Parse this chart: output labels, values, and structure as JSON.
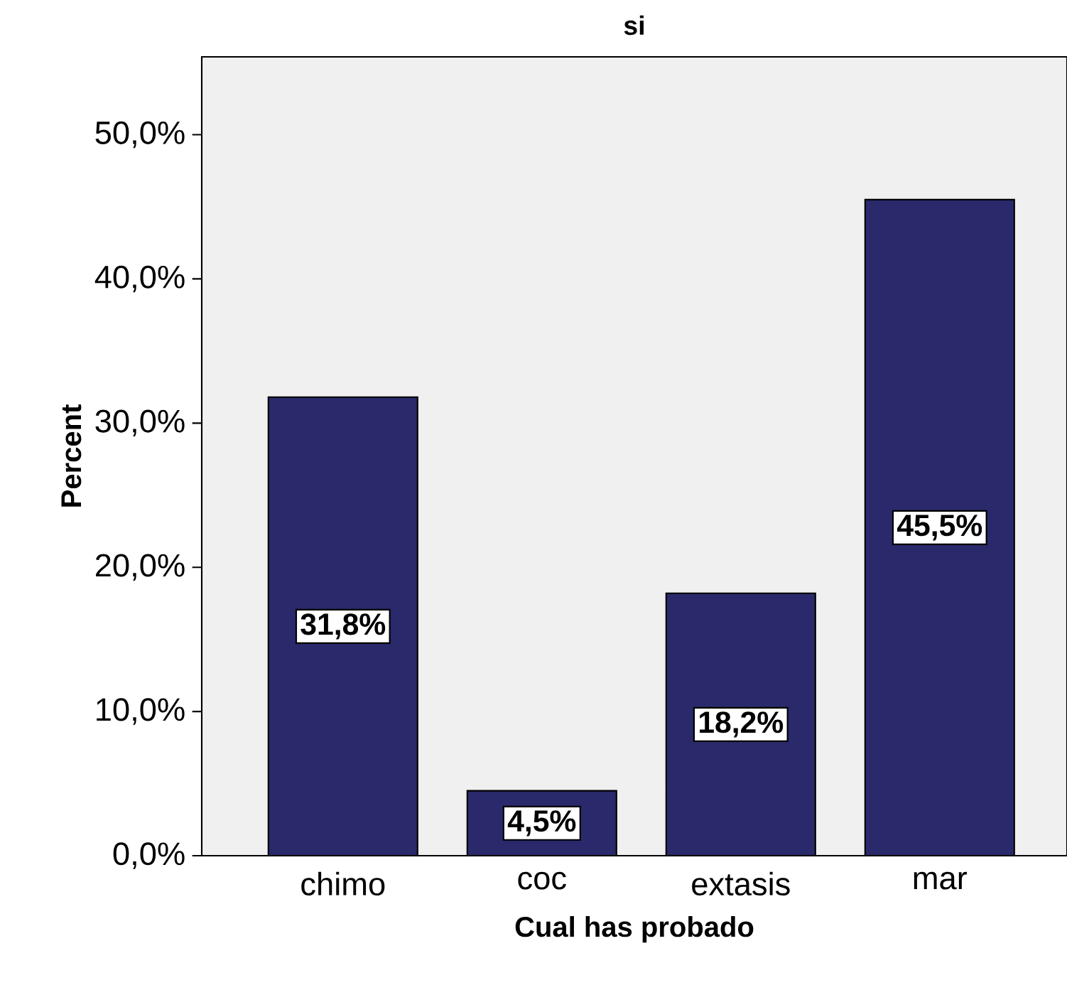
{
  "chart_data": {
    "type": "bar",
    "title": "si",
    "xlabel": "Cual has probado",
    "ylabel": "Percent",
    "categories": [
      "chimo",
      "coc",
      "extasis",
      "mar"
    ],
    "values": [
      31.8,
      4.5,
      18.2,
      45.5
    ],
    "value_labels": [
      "31,8%",
      "4,5%",
      "18,2%",
      "45,5%"
    ],
    "color": "#29296b",
    "ylim": [
      0,
      55.4
    ],
    "yticks": [
      {
        "value": 0,
        "label": "0,0%"
      },
      {
        "value": 10,
        "label": "10,0%"
      },
      {
        "value": 20,
        "label": "20,0%"
      },
      {
        "value": 30,
        "label": "30,0%"
      },
      {
        "value": 40,
        "label": "40,0%"
      },
      {
        "value": 50,
        "label": "50,0%"
      }
    ],
    "relative": false
  }
}
